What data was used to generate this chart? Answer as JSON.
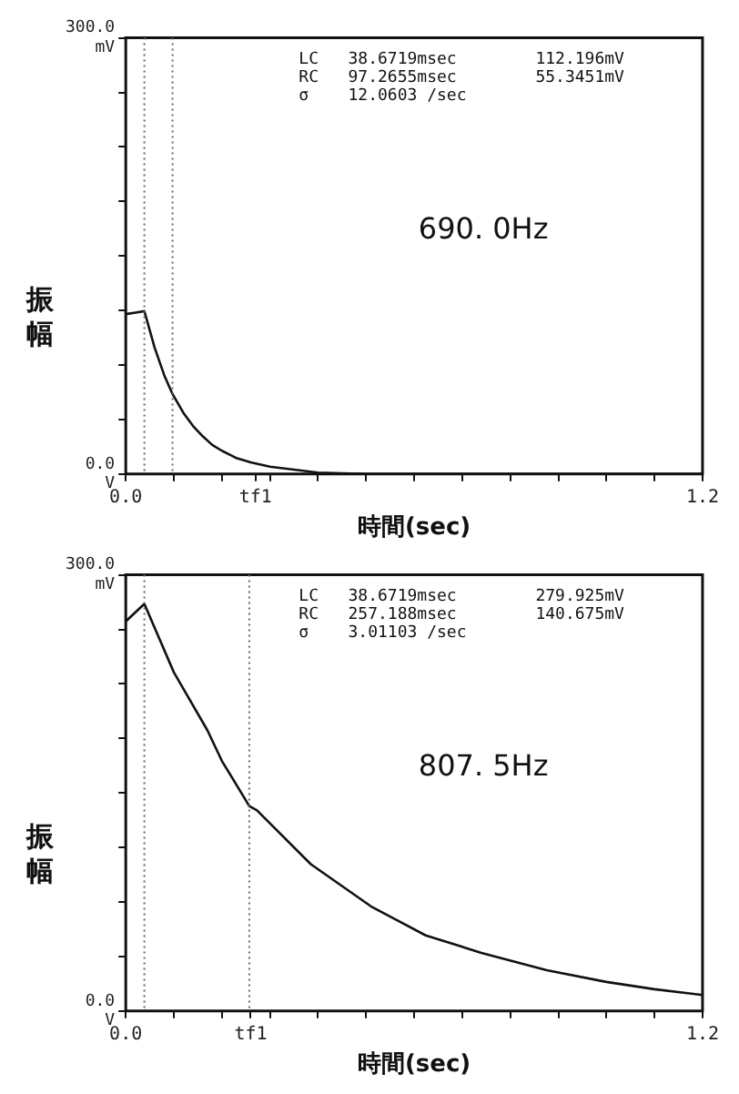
{
  "chart_data": [
    {
      "type": "line",
      "ylabel": "振幅",
      "xlabel": "時間(sec)",
      "xlim": [
        0,
        1.2
      ],
      "ylim": [
        0,
        300
      ],
      "xticks": [
        {
          "value": 0,
          "label": "0.0"
        },
        {
          "value": 0.1,
          "label": null
        },
        {
          "value": 0.2,
          "label": null
        },
        {
          "value": 0.27,
          "label": "tf1"
        },
        {
          "value": 0.3,
          "label": null
        },
        {
          "value": 0.4,
          "label": null
        },
        {
          "value": 0.5,
          "label": null
        },
        {
          "value": 0.6,
          "label": null
        },
        {
          "value": 0.7,
          "label": null
        },
        {
          "value": 0.8,
          "label": null
        },
        {
          "value": 0.9,
          "label": null
        },
        {
          "value": 1.0,
          "label": null
        },
        {
          "value": 1.1,
          "label": null
        },
        {
          "value": 1.2,
          "label": "1.2"
        }
      ],
      "yticks": [
        {
          "value": 0,
          "label": "0.0 V"
        },
        {
          "value": 37.5,
          "label": null
        },
        {
          "value": 75,
          "label": null
        },
        {
          "value": 112.5,
          "label": null
        },
        {
          "value": 150,
          "label": null
        },
        {
          "value": 187.5,
          "label": null
        },
        {
          "value": 225,
          "label": null
        },
        {
          "value": 262.5,
          "label": null
        },
        {
          "value": 300,
          "label": "300.0 mV"
        }
      ],
      "grid": false,
      "legend": false,
      "marker": "none",
      "line_style": "solid",
      "series": [
        {
          "color": "#111111",
          "x": [
            0,
            0.02,
            0.0387,
            0.06,
            0.08,
            0.0973,
            0.12,
            0.14,
            0.16,
            0.18,
            0.2,
            0.23,
            0.26,
            0.3,
            0.35,
            0.4,
            0.5,
            0.7,
            0.9,
            1.2
          ],
          "values": [
            110,
            111,
            112,
            87,
            68,
            55,
            42,
            33,
            26,
            20,
            16,
            11,
            8,
            5,
            3,
            1,
            0,
            0,
            0,
            0
          ]
        }
      ],
      "ref_lines": [
        {
          "axis": "x",
          "value": 0.0387,
          "line_style": "dotted",
          "color": "#666666"
        },
        {
          "axis": "x",
          "value": 0.0973,
          "line_style": "dotted",
          "color": "#666666"
        }
      ],
      "annotations": [
        "LC   38.6719msec        112.196mV",
        "RC   97.2655msec        55.3451mV",
        "σ    12.0603 /sec",
        "690. 0Hz"
      ]
    },
    {
      "type": "line",
      "ylabel": "振幅",
      "xlabel": "時間(sec)",
      "xlim": [
        0,
        1.2
      ],
      "ylim": [
        0,
        300
      ],
      "xticks": [
        {
          "value": 0,
          "label": "0.0"
        },
        {
          "value": 0.1,
          "label": null
        },
        {
          "value": 0.2,
          "label": null
        },
        {
          "value": 0.26,
          "label": "tf1"
        },
        {
          "value": 0.3,
          "label": null
        },
        {
          "value": 0.4,
          "label": null
        },
        {
          "value": 0.5,
          "label": null
        },
        {
          "value": 0.6,
          "label": null
        },
        {
          "value": 0.7,
          "label": null
        },
        {
          "value": 0.8,
          "label": null
        },
        {
          "value": 0.9,
          "label": null
        },
        {
          "value": 1.0,
          "label": null
        },
        {
          "value": 1.1,
          "label": null
        },
        {
          "value": 1.2,
          "label": "1.2"
        }
      ],
      "yticks": [
        {
          "value": 0,
          "label": "0.0 V"
        },
        {
          "value": 37.5,
          "label": null
        },
        {
          "value": 75,
          "label": null
        },
        {
          "value": 112.5,
          "label": null
        },
        {
          "value": 150,
          "label": null
        },
        {
          "value": 187.5,
          "label": null
        },
        {
          "value": 225,
          "label": null
        },
        {
          "value": 262.5,
          "label": null
        },
        {
          "value": 300,
          "label": "300.0 mV"
        }
      ],
      "grid": false,
      "legend": false,
      "marker": "none",
      "line_style": "solid",
      "series": [
        {
          "color": "#111111",
          "x": [
            0,
            0.0387,
            0.1,
            0.17,
            0.2,
            0.257,
            0.273,
            0.385,
            0.51,
            0.624,
            0.74,
            0.876,
            1.0,
            1.1,
            1.2
          ],
          "values": [
            268,
            280,
            233,
            193,
            172,
            141,
            138,
            101,
            72,
            52,
            40,
            28,
            20,
            15,
            11
          ]
        }
      ],
      "ref_lines": [
        {
          "axis": "x",
          "value": 0.0387,
          "line_style": "dotted",
          "color": "#666666"
        },
        {
          "axis": "x",
          "value": 0.257,
          "line_style": "dotted",
          "color": "#666666"
        }
      ],
      "annotations": [
        "LC   38.6719msec        279.925mV",
        "RC   257.188msec        140.675mV",
        "σ    3.01103 /sec",
        "807. 5Hz"
      ]
    }
  ]
}
